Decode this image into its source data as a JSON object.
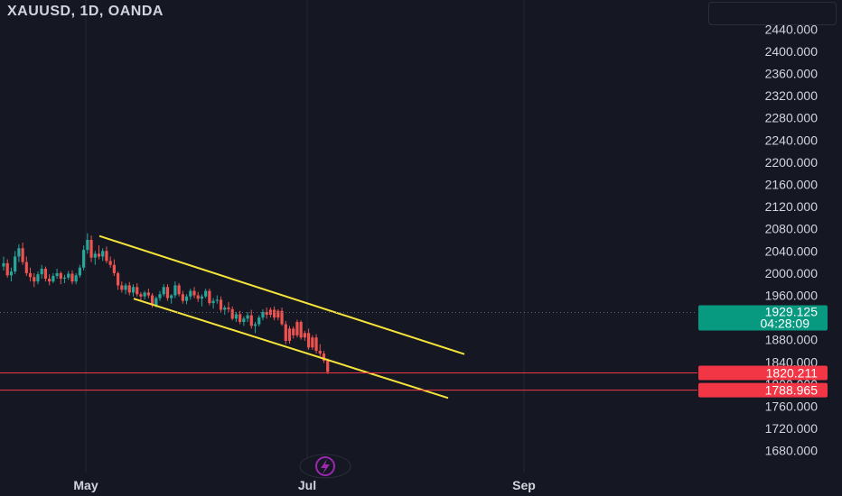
{
  "header": {
    "symbol_title": "XAUUSD, 1D, OANDA"
  },
  "colors": {
    "background": "#151823",
    "grid": "#242832",
    "up_candle": "#26a69a",
    "down_candle": "#ef5350",
    "channel_line": "#f5e33b",
    "current_price_tag": "#089981",
    "level_tag": "#f23645",
    "axis_text": "#d1d4dc",
    "lightning_badge": "#9c27b0"
  },
  "price_axis": {
    "labels": [
      "2440.000",
      "2400.000",
      "2360.000",
      "2320.000",
      "2280.000",
      "2240.000",
      "2200.000",
      "2160.000",
      "2120.000",
      "2080.000",
      "2040.000",
      "2000.000",
      "1960.000",
      "1920.000",
      "1880.000",
      "1840.000",
      "1800.000",
      "1760.000",
      "1720.000",
      "1680.000"
    ]
  },
  "time_axis": {
    "labels": [
      "May",
      "Jul",
      "Sep"
    ]
  },
  "current_price": {
    "value": "1929.125",
    "countdown": "04:28:09"
  },
  "horizontal_levels": [
    {
      "value": "1820.211"
    },
    {
      "value": "1788.965"
    }
  ],
  "badges": {
    "lightning_icon": "lightning-icon"
  },
  "chart_data": {
    "type": "candlestick",
    "symbol": "XAUUSD",
    "interval": "1D",
    "exchange": "OANDA",
    "y_range": [
      1660,
      2460
    ],
    "x_labels": [
      "May",
      "Jul",
      "Sep"
    ],
    "current_price": 1929.125,
    "horizontal_lines": [
      1820.211,
      1788.965
    ],
    "channel": {
      "upper": {
        "from_price": 2067,
        "to_price": 1854
      },
      "lower": {
        "from_price": 1954,
        "to_price": 1775
      }
    },
    "candles": [
      [
        2012,
        2030,
        2005,
        2018
      ],
      [
        2018,
        2025,
        1992,
        1996
      ],
      [
        1996,
        2010,
        1985,
        2003
      ],
      [
        2003,
        2040,
        1998,
        2030
      ],
      [
        2030,
        2052,
        2020,
        2045
      ],
      [
        2045,
        2055,
        2015,
        2020
      ],
      [
        2020,
        2030,
        1995,
        2000
      ],
      [
        2000,
        2010,
        1985,
        1993
      ],
      [
        1993,
        2000,
        1975,
        1985
      ],
      [
        1985,
        2003,
        1980,
        1998
      ],
      [
        1998,
        2015,
        1990,
        2008
      ],
      [
        2008,
        2012,
        1985,
        1990
      ],
      [
        1990,
        1998,
        1978,
        1985
      ],
      [
        1985,
        2000,
        1982,
        1995
      ],
      [
        1995,
        2008,
        1990,
        2000
      ],
      [
        2000,
        2003,
        1980,
        1990
      ],
      [
        1990,
        1997,
        1982,
        1992
      ],
      [
        1992,
        2004,
        1988,
        1999
      ],
      [
        1999,
        2005,
        1980,
        1985
      ],
      [
        1985,
        2000,
        1980,
        1996
      ],
      [
        1996,
        2015,
        1992,
        2010
      ],
      [
        2010,
        2050,
        2005,
        2042
      ],
      [
        2042,
        2072,
        2035,
        2060
      ],
      [
        2060,
        2068,
        2020,
        2028
      ],
      [
        2028,
        2040,
        2015,
        2035
      ],
      [
        2035,
        2050,
        2025,
        2030
      ],
      [
        2030,
        2045,
        2022,
        2040
      ],
      [
        2040,
        2048,
        2018,
        2022
      ],
      [
        2022,
        2030,
        2010,
        2015
      ],
      [
        2015,
        2025,
        1995,
        2000
      ],
      [
        2000,
        2003,
        1970,
        1978
      ],
      [
        1978,
        1985,
        1965,
        1970
      ],
      [
        1970,
        1982,
        1962,
        1978
      ],
      [
        1978,
        1984,
        1960,
        1965
      ],
      [
        1965,
        1980,
        1958,
        1975
      ],
      [
        1975,
        1982,
        1958,
        1962
      ],
      [
        1962,
        1966,
        1950,
        1958
      ],
      [
        1958,
        1968,
        1952,
        1965
      ],
      [
        1965,
        1972,
        1955,
        1960
      ],
      [
        1960,
        1964,
        1938,
        1942
      ],
      [
        1942,
        1958,
        1938,
        1955
      ],
      [
        1955,
        1968,
        1950,
        1962
      ],
      [
        1962,
        1980,
        1958,
        1975
      ],
      [
        1975,
        1980,
        1950,
        1955
      ],
      [
        1955,
        1962,
        1945,
        1960
      ],
      [
        1960,
        1985,
        1955,
        1978
      ],
      [
        1978,
        1982,
        1958,
        1962
      ],
      [
        1962,
        1968,
        1945,
        1950
      ],
      [
        1950,
        1962,
        1944,
        1958
      ],
      [
        1958,
        1972,
        1952,
        1968
      ],
      [
        1968,
        1975,
        1955,
        1960
      ],
      [
        1960,
        1966,
        1948,
        1954
      ],
      [
        1954,
        1962,
        1940,
        1958
      ],
      [
        1958,
        1972,
        1955,
        1968
      ],
      [
        1968,
        1972,
        1942,
        1946
      ],
      [
        1946,
        1955,
        1936,
        1950
      ],
      [
        1950,
        1960,
        1945,
        1952
      ],
      [
        1952,
        1958,
        1930,
        1934
      ],
      [
        1934,
        1942,
        1925,
        1938
      ],
      [
        1938,
        1948,
        1930,
        1935
      ],
      [
        1935,
        1940,
        1915,
        1918
      ],
      [
        1918,
        1930,
        1912,
        1926
      ],
      [
        1926,
        1932,
        1908,
        1912
      ],
      [
        1912,
        1922,
        1905,
        1918
      ],
      [
        1918,
        1930,
        1912,
        1924
      ],
      [
        1924,
        1934,
        1900,
        1905
      ],
      [
        1905,
        1912,
        1892,
        1908
      ],
      [
        1908,
        1924,
        1904,
        1920
      ],
      [
        1920,
        1935,
        1915,
        1930
      ],
      [
        1930,
        1938,
        1918,
        1925
      ],
      [
        1925,
        1938,
        1920,
        1934
      ],
      [
        1934,
        1940,
        1915,
        1920
      ],
      [
        1920,
        1935,
        1915,
        1932
      ],
      [
        1932,
        1938,
        1905,
        1908
      ],
      [
        1908,
        1914,
        1872,
        1878
      ],
      [
        1878,
        1905,
        1873,
        1900
      ],
      [
        1900,
        1904,
        1882,
        1888
      ],
      [
        1888,
        1916,
        1884,
        1912
      ],
      [
        1912,
        1915,
        1880,
        1884
      ],
      [
        1884,
        1896,
        1878,
        1892
      ],
      [
        1892,
        1900,
        1862,
        1866
      ],
      [
        1866,
        1888,
        1862,
        1884
      ],
      [
        1884,
        1890,
        1855,
        1860
      ],
      [
        1860,
        1872,
        1850,
        1855
      ],
      [
        1855,
        1860,
        1838,
        1842
      ],
      [
        1842,
        1846,
        1818,
        1822
      ]
    ]
  }
}
